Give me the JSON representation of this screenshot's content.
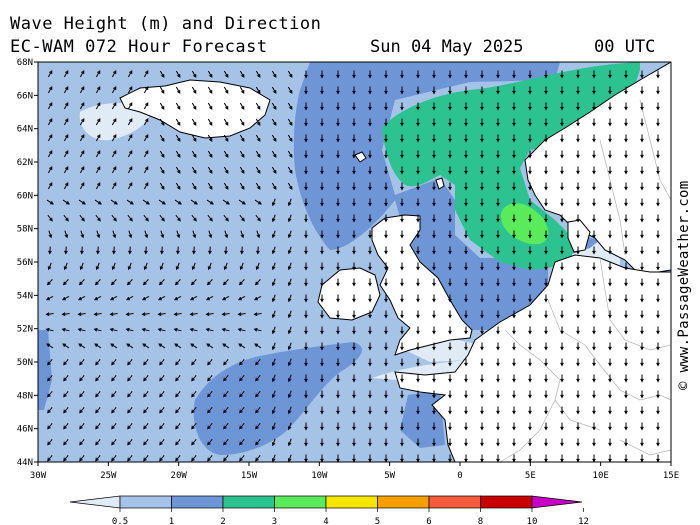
{
  "header": {
    "title": "Wave Height (m) and Direction",
    "subtitle": "EC-WAM 072 Hour Forecast",
    "date": "Sun 04 May 2025",
    "time": "00 UTC"
  },
  "watermark": "© www.PassageWeather.com",
  "axes": {
    "lat_labels": [
      "68N",
      "66N",
      "64N",
      "62N",
      "60N",
      "58N",
      "56N",
      "54N",
      "52N",
      "50N",
      "48N",
      "46N",
      "44N"
    ],
    "lat_values": [
      68,
      66,
      64,
      62,
      60,
      58,
      56,
      54,
      52,
      50,
      48,
      46,
      44
    ],
    "lon_labels": [
      "30W",
      "25W",
      "20W",
      "15W",
      "10W",
      "5W",
      "0",
      "5E",
      "10E",
      "15E"
    ],
    "lon_values": [
      -30,
      -25,
      -20,
      -15,
      -10,
      -5,
      0,
      5,
      10,
      15
    ]
  },
  "legend": {
    "labels": [
      "0.5",
      "1",
      "2",
      "3",
      "4",
      "5",
      "6",
      "8",
      "10",
      "12"
    ],
    "colors": [
      "#e1ebf5",
      "#a5c3e6",
      "#6e96d7",
      "#2dc391",
      "#5aeb5a",
      "#f5e600",
      "#f5a000",
      "#f55a3c",
      "#c80000",
      "#c800c8"
    ]
  },
  "colors": {
    "land": "#ffffff",
    "coast": "#000000",
    "border": "#b4b4b4",
    "arrow": "#000000"
  }
}
